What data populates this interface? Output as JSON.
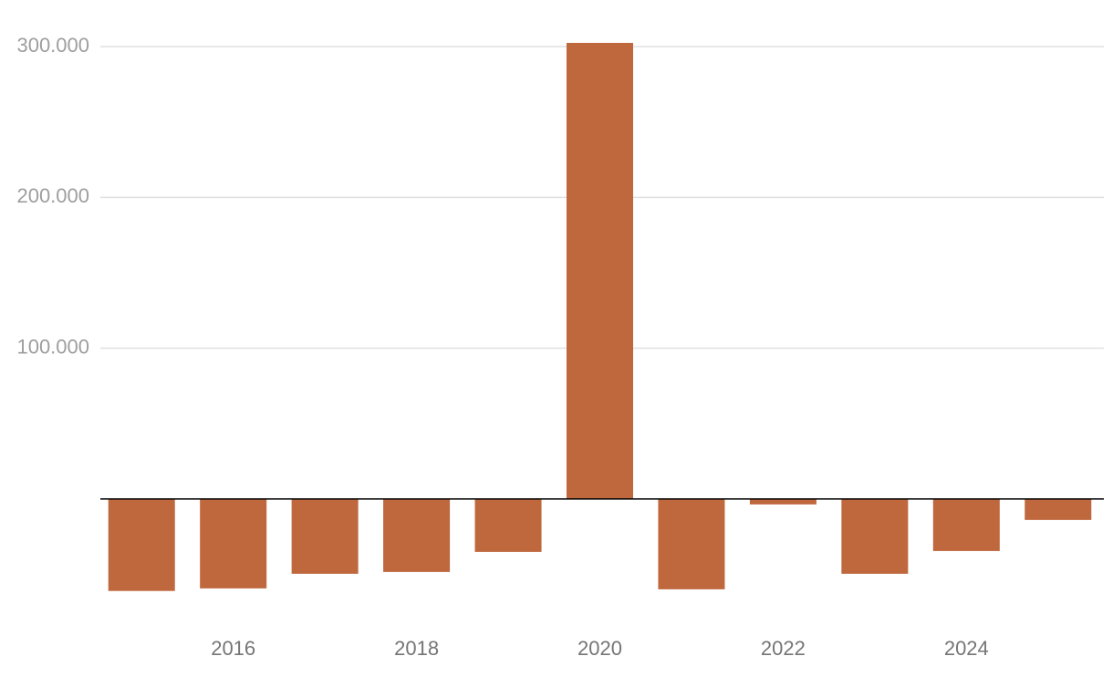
{
  "chart_data": {
    "type": "bar",
    "categories": [
      null,
      "2016",
      null,
      "2018",
      null,
      "2020",
      null,
      "2022",
      null,
      "2024",
      null
    ],
    "values": [
      -61000,
      -59300,
      -49600,
      -48400,
      -35100,
      302500,
      -59900,
      -3600,
      -49600,
      -34500,
      -13900
    ],
    "color": "#bf673d",
    "ylim": [
      -80000,
      310000
    ],
    "yticks": [
      {
        "value": 100000,
        "label": "100.000"
      },
      {
        "value": 200000,
        "label": "200.000"
      },
      {
        "value": 300000,
        "label": "300.000"
      }
    ],
    "grid": true
  }
}
